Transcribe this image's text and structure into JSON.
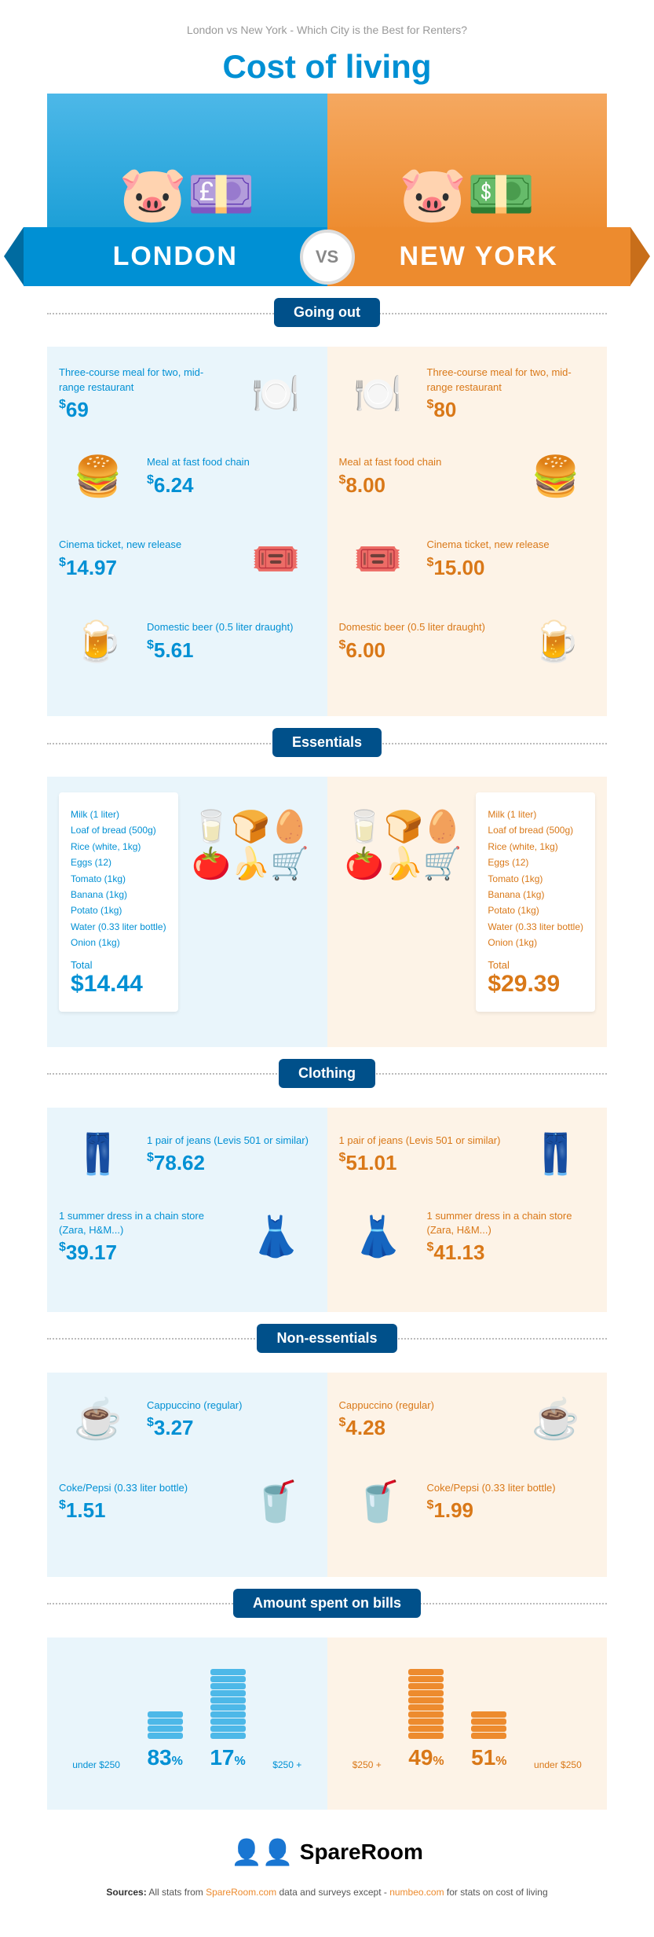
{
  "subtitle": "London vs New York - Which City is the Best for Renters?",
  "title": "Cost of living",
  "cities": {
    "left": "LONDON",
    "right": "NEW YORK"
  },
  "vs": "VS",
  "currency": "$",
  "colors": {
    "london_primary": "#0090d4",
    "london_light": "#4db8e8",
    "london_bg": "#e9f5fb",
    "newyork_primary": "#ed8b2e",
    "newyork_text": "#d97818",
    "newyork_bg": "#fdf3e7",
    "label_bg": "#00508a"
  },
  "sections": {
    "going_out": {
      "label": "Going out",
      "items": [
        {
          "key": "meal",
          "label": "Three-course meal for two, mid-range restaurant",
          "london": "69",
          "newyork": "80",
          "icon": "🍽️"
        },
        {
          "key": "fastfood",
          "label": "Meal at fast food chain",
          "london": "6.24",
          "newyork": "8.00",
          "icon": "🍔"
        },
        {
          "key": "cinema",
          "label": "Cinema ticket, new release",
          "london": "14.97",
          "newyork": "15.00",
          "icon": "🎟️"
        },
        {
          "key": "beer",
          "label": "Domestic beer (0.5 liter draught)",
          "london": "5.61",
          "newyork": "6.00",
          "icon": "🍺"
        }
      ]
    },
    "essentials": {
      "label": "Essentials",
      "list": [
        "Milk (1 liter)",
        "Loaf of bread (500g)",
        "Rice (white, 1kg)",
        "Eggs (12)",
        "Tomato (1kg)",
        "Banana (1kg)",
        "Potato (1kg)",
        "Water (0.33 liter bottle)",
        "Onion (1kg)"
      ],
      "total_label": "Total",
      "london_total": "14.44",
      "newyork_total": "29.39"
    },
    "clothing": {
      "label": "Clothing",
      "items": [
        {
          "key": "jeans",
          "label": "1 pair of jeans (Levis 501 or similar)",
          "london": "78.62",
          "newyork": "51.01",
          "icon": "👖"
        },
        {
          "key": "dress",
          "label": "1 summer dress in a chain store (Zara, H&M...)",
          "london": "39.17",
          "newyork": "41.13",
          "icon": "👗"
        }
      ]
    },
    "nonessentials": {
      "label": "Non-essentials",
      "items": [
        {
          "key": "cap",
          "label": "Cappuccino (regular)",
          "london": "3.27",
          "newyork": "4.28",
          "icon": "☕"
        },
        {
          "key": "coke",
          "label": "Coke/Pepsi (0.33 liter bottle)",
          "london": "1.51",
          "newyork": "1.99",
          "icon": "🥤"
        }
      ]
    },
    "bills": {
      "label": "Amount spent on bills",
      "under_label": "under $250",
      "over_label": "$250 +",
      "london": {
        "under": "83",
        "over": "17"
      },
      "newyork": {
        "under": "51",
        "over": "49"
      },
      "under_coins": 4,
      "over_coins": 10
    }
  },
  "footer": {
    "brand": "SpareRoom",
    "sources_prefix": "Sources:",
    "sources_text": " All stats from ",
    "source1": "SpareRoom.com",
    "sources_mid": " data and surveys except - ",
    "source2": "numbeo.com",
    "sources_end": " for stats on cost of living"
  }
}
